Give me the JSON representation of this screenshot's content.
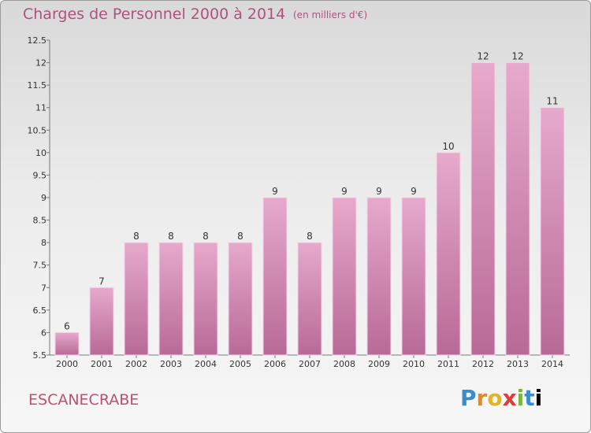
{
  "title": "Charges de Personnel 2000 à 2014",
  "subtitle": "(en milliers d'€)",
  "commune": "ESCANECRABE",
  "logo": {
    "letters": [
      "P",
      "r",
      "o",
      "x",
      "i",
      "t",
      "i"
    ],
    "text": "Proxiti"
  },
  "colors": {
    "bar_light": "#e6a9cc",
    "bar_dark": "#b86a96",
    "text_accent": "#b0517c"
  },
  "chart_data": {
    "type": "bar",
    "title": "Charges de Personnel 2000 à 2014",
    "subtitle": "(en milliers d'€)",
    "categories": [
      "2000",
      "2001",
      "2002",
      "2003",
      "2004",
      "2005",
      "2006",
      "2007",
      "2008",
      "2009",
      "2010",
      "2011",
      "2012",
      "2013",
      "2014"
    ],
    "values": [
      6,
      7,
      8,
      8,
      8,
      8,
      9,
      8,
      9,
      9,
      9,
      10,
      12,
      12,
      11
    ],
    "ylim": [
      5.5,
      12.5
    ],
    "yticks": [
      "5.5",
      "6",
      "6.5",
      "7",
      "7.5",
      "8",
      "8.5",
      "9",
      "9.5",
      "10",
      "10.5",
      "11",
      "11.5",
      "12",
      "12.5"
    ],
    "grid": false,
    "xlabel": "",
    "ylabel": ""
  }
}
